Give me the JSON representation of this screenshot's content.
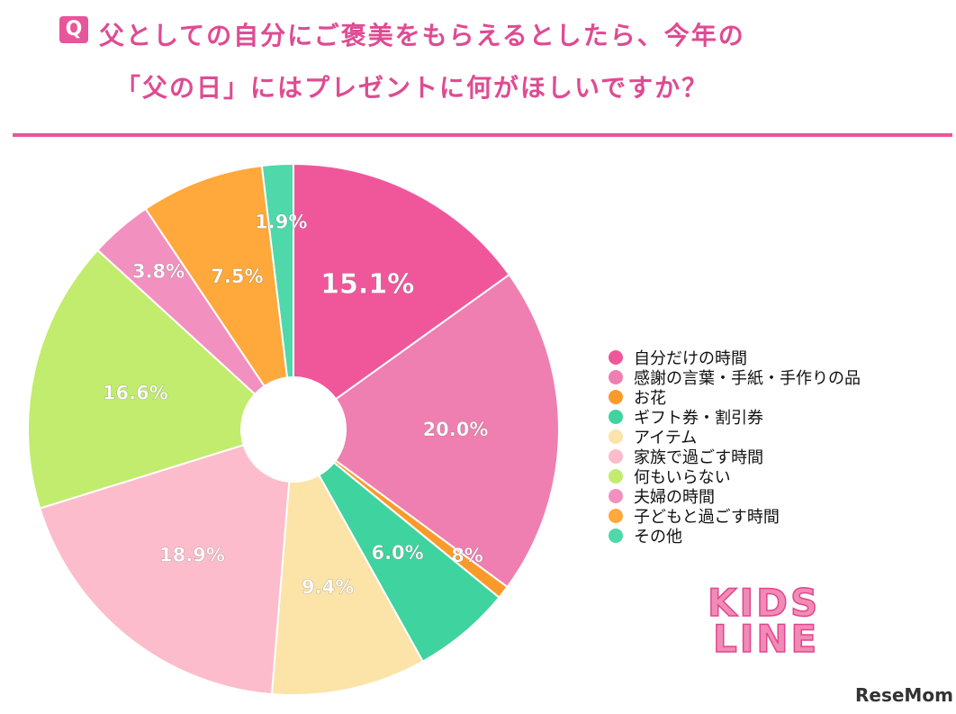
{
  "header": {
    "q_badge": "Q",
    "title_line1": "父としての自分にご褒美をもらえるとしたら、今年の",
    "title_line2": "「父の日」にはプレゼントに何がほしいですか？"
  },
  "chart_data": {
    "type": "pie",
    "donut": true,
    "start": "top, clockwise",
    "slices": [
      {
        "name": "自分だけの時間",
        "value": 15.1,
        "label": "15.1%",
        "color": "#f0579b"
      },
      {
        "name": "感謝の言葉・手紙・手作りの品",
        "value": 20.0,
        "label": "20.0%",
        "color": "#ef7fb1"
      },
      {
        "name": "お花",
        "value": 0.8,
        "label": "0.8%",
        "color": "#f99a2b"
      },
      {
        "name": "ギフト券・割引券",
        "value": 6.0,
        "label": "6.0%",
        "color": "#3fd3a0"
      },
      {
        "name": "アイテム",
        "value": 9.4,
        "label": "9.4%",
        "color": "#fce3a7"
      },
      {
        "name": "家族で過ごす時間",
        "value": 18.9,
        "label": "18.9%",
        "color": "#fcbccc"
      },
      {
        "name": "何もいらない",
        "value": 16.6,
        "label": "16.6%",
        "color": "#c1ec6d"
      },
      {
        "name": "夫婦の時間",
        "value": 3.8,
        "label": "3.8%",
        "color": "#f291bf"
      },
      {
        "name": "子どもと過ごす時間",
        "value": 7.5,
        "label": "7.5%",
        "color": "#ffa83b"
      },
      {
        "name": "その他",
        "value": 1.9,
        "label": "1.9%",
        "color": "#4fd8aa"
      }
    ],
    "legend_position": "right"
  },
  "branding": {
    "kids_line_1": "KIDS",
    "kids_line_2": "LINE",
    "resemom": "ReseMom"
  },
  "colors": {
    "accent": "#e7559a"
  }
}
